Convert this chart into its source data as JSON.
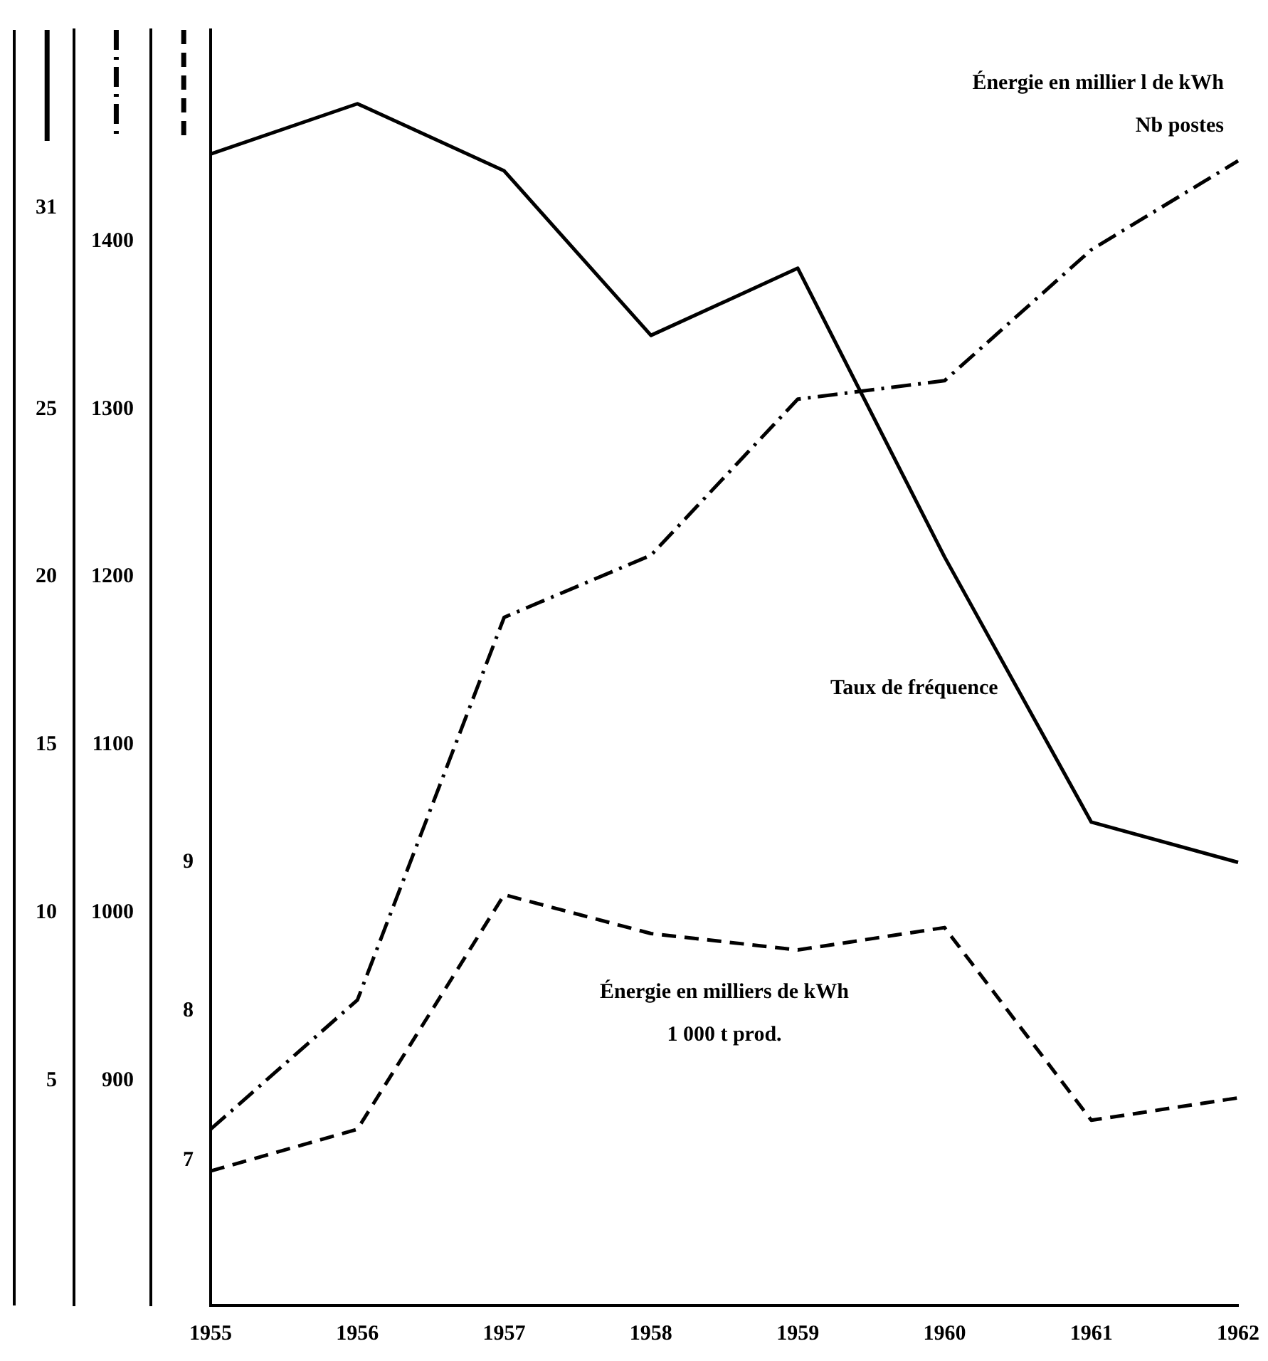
{
  "chart_data": {
    "type": "line",
    "categories": [
      "1955",
      "1956",
      "1957",
      "1958",
      "1959",
      "1960",
      "1961",
      "1962"
    ],
    "series": [
      {
        "name": "Taux de fréquence",
        "color": "#000000",
        "line_style": "solid",
        "axis": "y",
        "values": [
          32.6,
          34.1,
          32.1,
          27.2,
          29.2,
          20.6,
          12.7,
          11.5
        ]
      },
      {
        "name": "Énergie en millier l de kWh\nNb postes",
        "color": "#000000",
        "line_style": "dashdot",
        "axis": "y2",
        "values": [
          871,
          948,
          1176,
          1213,
          1306,
          1317,
          1395,
          1448
        ]
      },
      {
        "name": "Énergie en milliers de kWh\n1 000 t prod.",
        "color": "#000000",
        "line_style": "dashed",
        "axis": "y3",
        "values": [
          6.93,
          7.21,
          8.78,
          8.52,
          8.41,
          8.56,
          7.27,
          7.42
        ]
      }
    ],
    "ylim": [
      -1.7,
      36.3
    ],
    "yticks": [
      5,
      10,
      15,
      20,
      25,
      31
    ],
    "y2lim": [
      766,
      1526
    ],
    "y2ticks": [
      900,
      1000,
      1100,
      1200,
      1300,
      1400
    ],
    "y3lim": [
      6.03,
      14.57
    ],
    "y3ticks": [
      7,
      8,
      9
    ],
    "grid": false,
    "marker": "none"
  }
}
